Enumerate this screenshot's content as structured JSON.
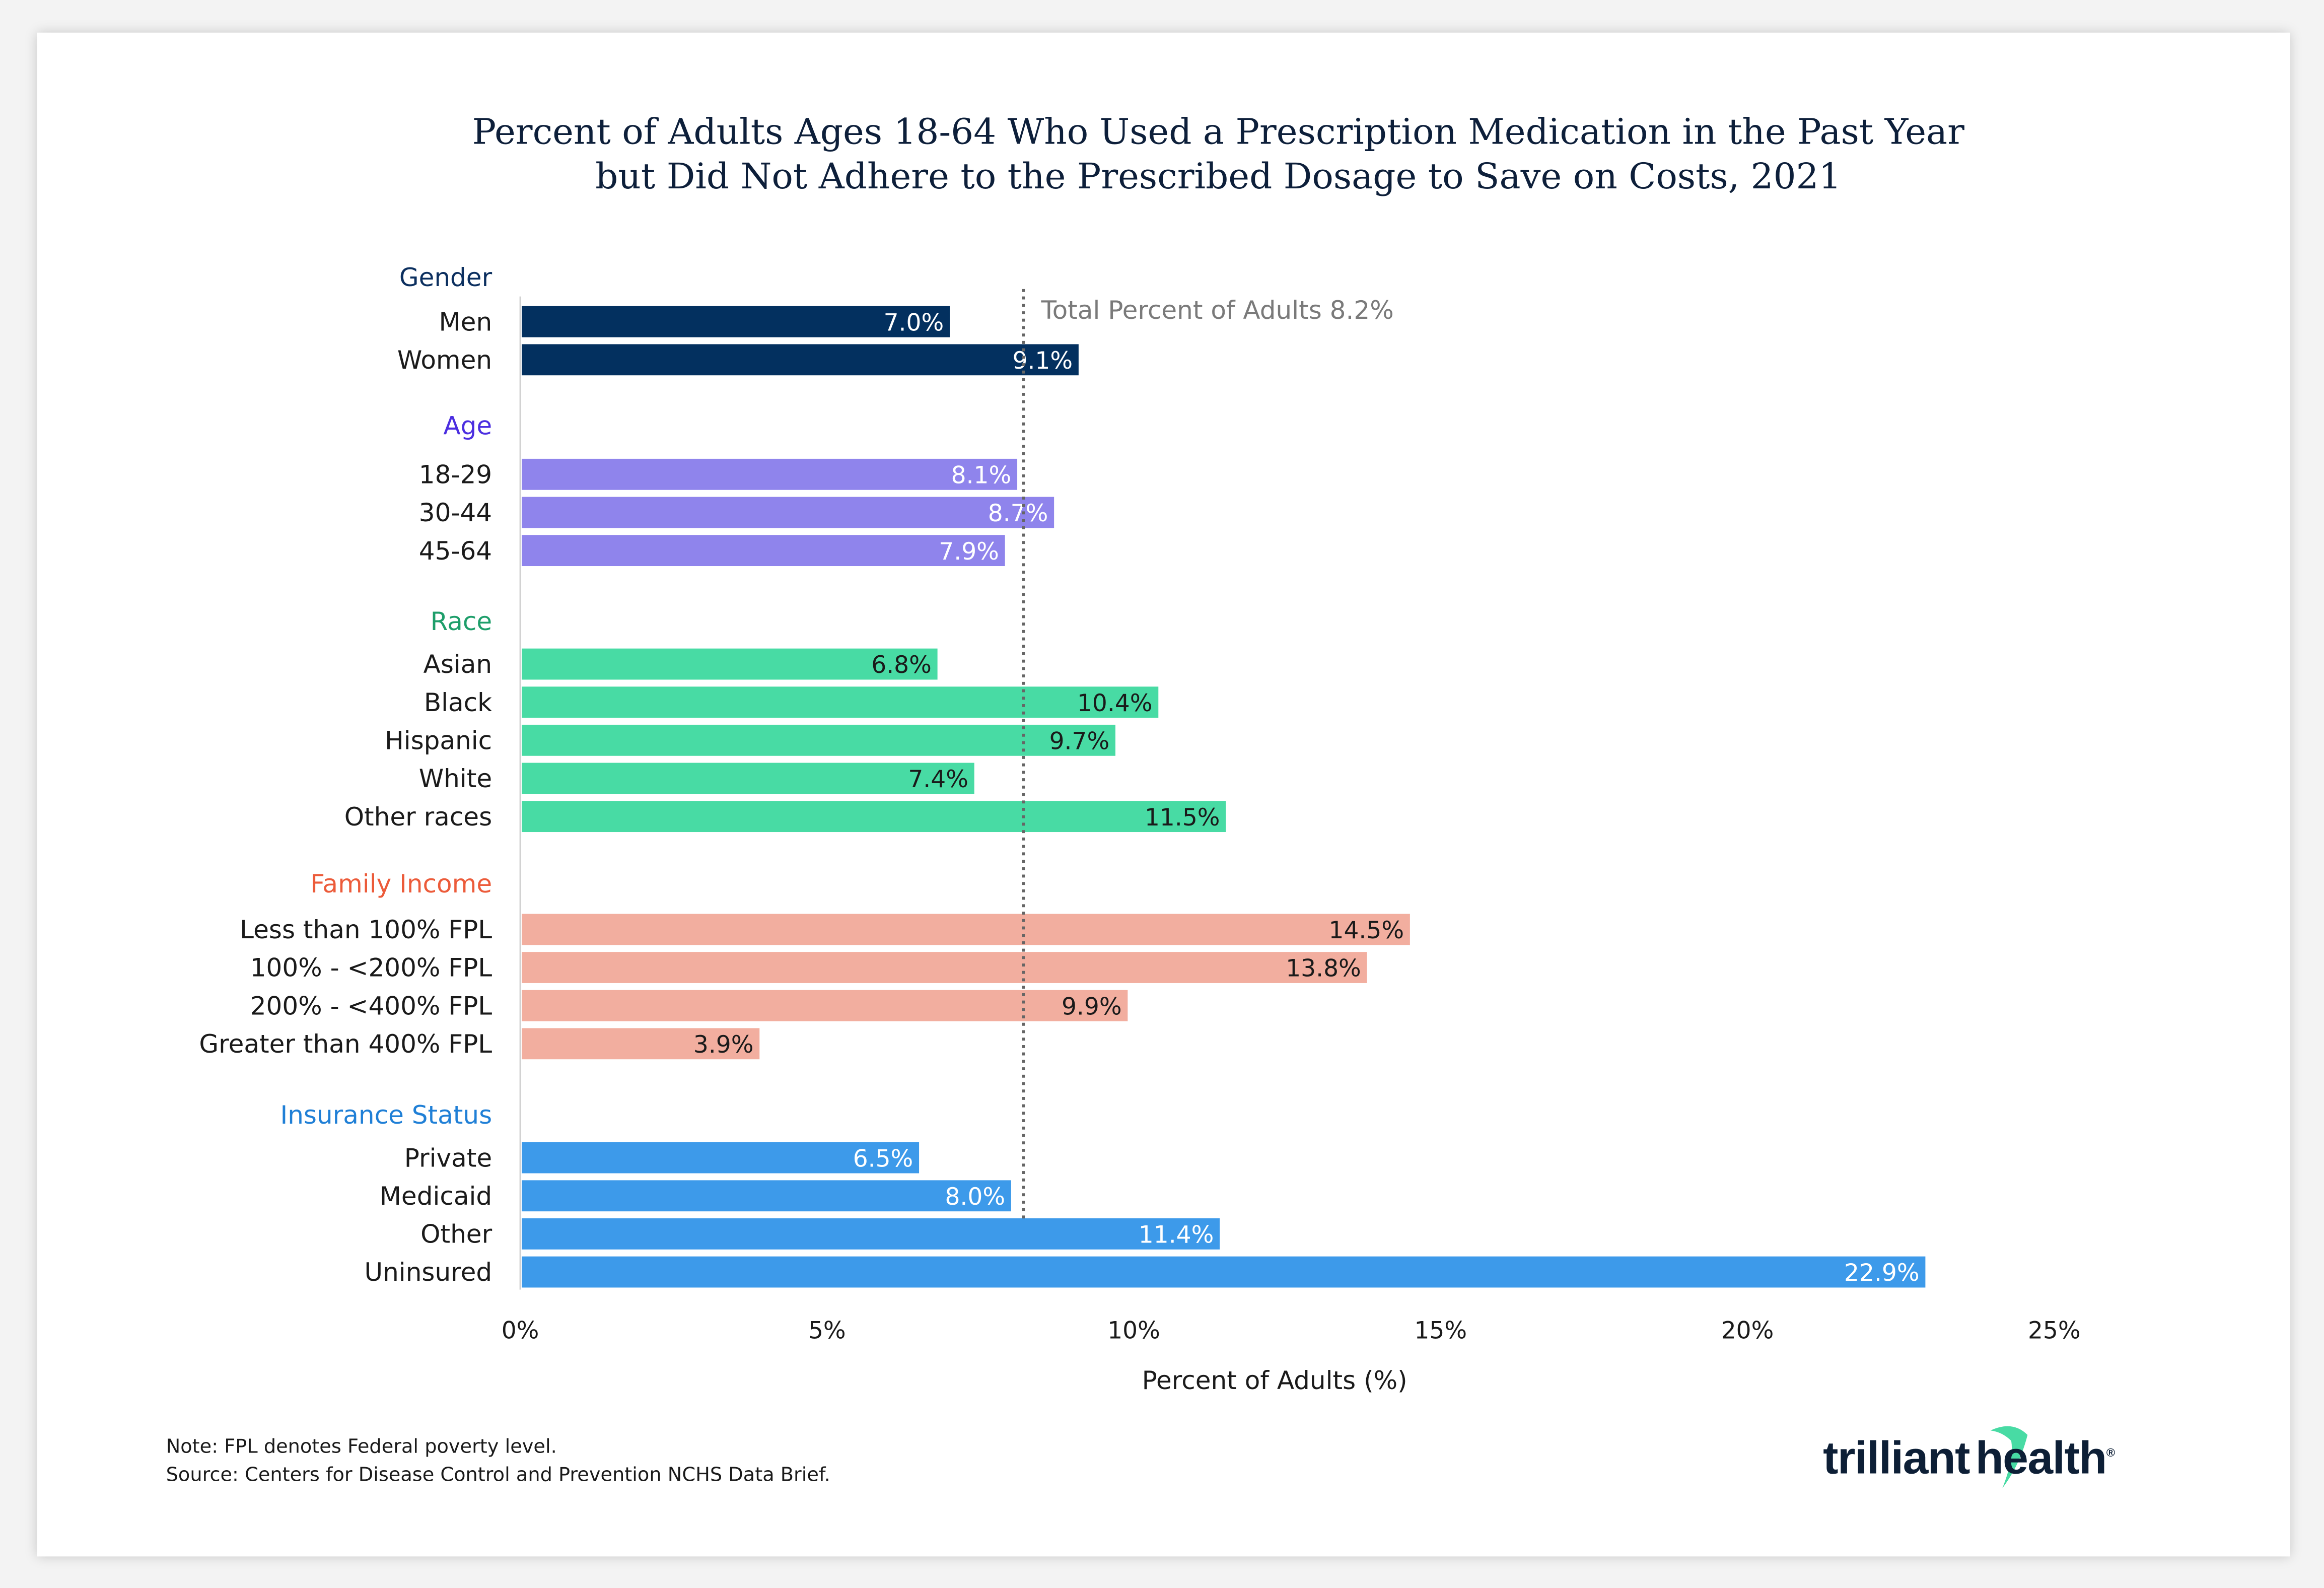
{
  "chart_data": {
    "type": "bar",
    "orientation": "horizontal",
    "title": "Percent of Adults Ages 18-64 Who Used a Prescription Medication in the Past Year but Did Not Adhere to the Prescribed Dosage to Save on Costs, 2021",
    "title_lines": [
      "Percent of Adults Ages 18-64 Who Used a Prescription Medication in the Past Year",
      "but Did Not Adhere to the Prescribed Dosage to Save on Costs, 2021"
    ],
    "xlabel": "Percent of Adults (%)",
    "xlim": [
      0,
      25
    ],
    "xticks": [
      "0%",
      "5%",
      "10%",
      "15%",
      "20%",
      "25%"
    ],
    "grid": false,
    "reference_line": {
      "value": 8.2,
      "label": "Total Percent of Adults 8.2%"
    },
    "groups": [
      {
        "name": "Gender",
        "header_color": "#0b2f5f",
        "bar_color": "#03305f",
        "label_color": "#ffffff",
        "categories": [
          "Men",
          "Women"
        ],
        "values": [
          7.0,
          9.1
        ],
        "labels": [
          "7.0%",
          "9.1%"
        ]
      },
      {
        "name": "Age",
        "header_color": "#4b2ee0",
        "bar_color": "#8f84ec",
        "label_color": "#ffffff",
        "categories": [
          "18-29",
          "30-44",
          "45-64"
        ],
        "values": [
          8.1,
          8.7,
          7.9
        ],
        "labels": [
          "8.1%",
          "8.7%",
          "7.9%"
        ]
      },
      {
        "name": "Race",
        "header_color": "#1d9e6a",
        "bar_color": "#48dba4",
        "label_color": "#1a1a1a",
        "categories": [
          "Asian",
          "Black",
          "Hispanic",
          "White",
          "Other races"
        ],
        "values": [
          6.8,
          10.4,
          9.7,
          7.4,
          11.5
        ],
        "labels": [
          "6.8%",
          "10.4%",
          "9.7%",
          "7.4%",
          "11.5%"
        ]
      },
      {
        "name": "Family Income",
        "header_color": "#ec5b3a",
        "bar_color": "#f2ae9f",
        "label_color": "#1a1a1a",
        "categories": [
          "Less than 100% FPL",
          "100% - <200% FPL",
          "200% - <400% FPL",
          "Greater than 400% FPL"
        ],
        "values": [
          14.5,
          13.8,
          9.9,
          3.9
        ],
        "labels": [
          "14.5%",
          "13.8%",
          "9.9%",
          "3.9%"
        ]
      },
      {
        "name": "Insurance Status",
        "header_color": "#1f7fd6",
        "bar_color": "#3d9aea",
        "label_color": "#ffffff",
        "categories": [
          "Private",
          "Medicaid",
          "Other",
          "Uninsured"
        ],
        "values": [
          6.5,
          8.0,
          11.4,
          22.9
        ],
        "labels": [
          "6.5%",
          "8.0%",
          "11.4%",
          "22.9%"
        ]
      }
    ]
  },
  "footer": {
    "note": "Note: FPL denotes Federal poverty level.",
    "source": "Source: Centers for Disease Control and Prevention NCHS Data Brief."
  },
  "logo": {
    "text": "trilliant health",
    "accent_color": "#48dba4"
  }
}
